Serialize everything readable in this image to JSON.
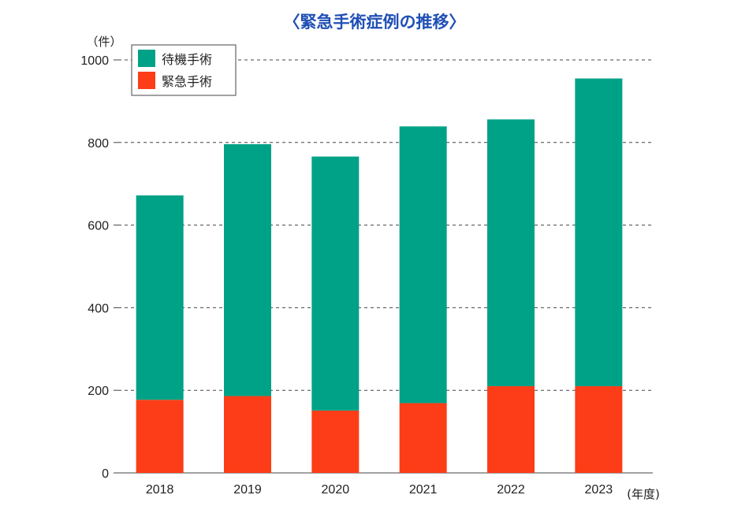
{
  "chart_data": {
    "type": "bar",
    "stacked": true,
    "title": "〈緊急手術症例の推移〉",
    "y_unit": "（件）",
    "x_unit": "(年度)",
    "categories": [
      "2018",
      "2019",
      "2020",
      "2021",
      "2022",
      "2023"
    ],
    "series": [
      {
        "name": "緊急手術",
        "color": "#fc3d17",
        "values": [
          177,
          186,
          151,
          169,
          210,
          210
        ]
      },
      {
        "name": "待機手術",
        "color": "#00a287",
        "values": [
          495,
          610,
          615,
          670,
          646,
          745
        ]
      }
    ],
    "ylim": [
      0,
      1000
    ],
    "yticks": [
      "0",
      "200",
      "400",
      "600",
      "800",
      "1000"
    ],
    "grid": "dashed-horizontal",
    "legend_position": "top-left",
    "legend_order": [
      "待機手術",
      "緊急手術"
    ]
  }
}
